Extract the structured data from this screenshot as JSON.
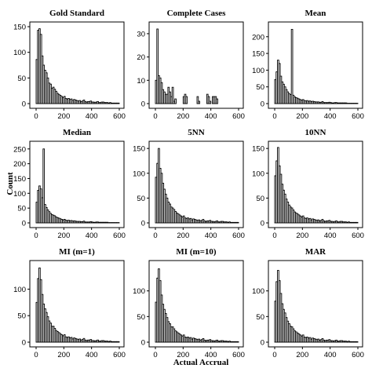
{
  "figure": {
    "xlabel": "Actual Accrual",
    "ylabel": "Count"
  },
  "chart_data": [
    {
      "type": "bar",
      "title": "Gold Standard",
      "xlim": [
        0,
        600
      ],
      "xticks": [
        0,
        200,
        400,
        600
      ],
      "ylim": [
        0,
        150
      ],
      "yticks": [
        0,
        50,
        100,
        150
      ],
      "bin_width": 10,
      "bin_starts": [
        0,
        10,
        20,
        30,
        40,
        50,
        60,
        70,
        80,
        90,
        100,
        110,
        120,
        130,
        140,
        150,
        160,
        170,
        180,
        190,
        200,
        210,
        220,
        230,
        240,
        250,
        260,
        270,
        280,
        290,
        300,
        310,
        320,
        330,
        340,
        350,
        360,
        370,
        380,
        390,
        400,
        410,
        420,
        430,
        440,
        450,
        460,
        470,
        480,
        490,
        500,
        510,
        520,
        530,
        540,
        550,
        560,
        570,
        580,
        590
      ],
      "values": [
        86,
        143,
        146,
        135,
        93,
        75,
        65,
        60,
        50,
        40,
        38,
        30,
        32,
        28,
        24,
        20,
        18,
        16,
        14,
        12,
        14,
        10,
        9,
        10,
        8,
        9,
        6,
        8,
        7,
        6,
        5,
        6,
        4,
        5,
        7,
        4,
        3,
        4,
        4,
        5,
        3,
        3,
        2,
        3,
        4,
        2,
        2,
        3,
        3,
        2,
        2,
        2,
        1,
        2,
        1,
        1,
        1,
        1,
        1,
        1
      ]
    },
    {
      "type": "bar",
      "title": "Complete Cases",
      "xlim": [
        0,
        600
      ],
      "xticks": [
        0,
        200,
        400,
        600
      ],
      "ylim": [
        0,
        33
      ],
      "yticks": [
        0,
        10,
        20,
        30
      ],
      "bin_width": 10,
      "bin_starts": [
        0,
        10,
        20,
        30,
        40,
        50,
        60,
        70,
        80,
        90,
        100,
        110,
        120,
        130,
        140,
        150,
        160,
        170,
        180,
        190,
        200,
        210,
        220,
        230,
        240,
        250,
        260,
        270,
        280,
        290,
        300,
        310,
        320,
        330,
        340,
        350,
        360,
        370,
        380,
        390,
        400,
        410,
        420,
        430,
        440,
        450,
        460,
        470,
        480,
        490,
        500,
        510,
        520,
        530,
        540,
        550,
        560,
        570,
        580,
        590
      ],
      "values": [
        10,
        32,
        12,
        11,
        9,
        6,
        5,
        4,
        4,
        7,
        5,
        3,
        7,
        1,
        2,
        0,
        0,
        0,
        0,
        0,
        3,
        4,
        3,
        0,
        0,
        0,
        0,
        0,
        0,
        0,
        3,
        1,
        0,
        0,
        0,
        0,
        0,
        4,
        3,
        1,
        0,
        3,
        3,
        3,
        2,
        0,
        0,
        0,
        0,
        0,
        0,
        0,
        0,
        0,
        0,
        0,
        0,
        0,
        0,
        0
      ]
    },
    {
      "type": "bar",
      "title": "Mean",
      "xlim": [
        0,
        600
      ],
      "xticks": [
        0,
        200,
        400,
        600
      ],
      "ylim": [
        0,
        230
      ],
      "yticks": [
        0,
        50,
        100,
        150,
        200
      ],
      "bin_width": 10,
      "bin_starts": [
        0,
        10,
        20,
        30,
        40,
        50,
        60,
        70,
        80,
        90,
        100,
        110,
        120,
        130,
        140,
        150,
        160,
        170,
        180,
        190,
        200,
        210,
        220,
        230,
        240,
        250,
        260,
        270,
        280,
        290,
        300,
        310,
        320,
        330,
        340,
        350,
        360,
        370,
        380,
        390,
        400,
        410,
        420,
        430,
        440,
        450,
        460,
        470,
        480,
        490,
        500,
        510,
        520,
        530,
        540,
        550,
        560,
        570,
        580,
        590
      ],
      "values": [
        72,
        95,
        130,
        120,
        82,
        65,
        58,
        50,
        42,
        35,
        30,
        27,
        222,
        25,
        20,
        18,
        16,
        14,
        12,
        10,
        12,
        9,
        8,
        9,
        7,
        8,
        6,
        7,
        6,
        5,
        5,
        5,
        4,
        4,
        6,
        3,
        3,
        3,
        3,
        4,
        3,
        2,
        2,
        3,
        3,
        2,
        2,
        2,
        2,
        2,
        2,
        2,
        1,
        1,
        1,
        1,
        1,
        1,
        1,
        1
      ]
    },
    {
      "type": "bar",
      "title": "Median",
      "xlim": [
        0,
        600
      ],
      "xticks": [
        0,
        200,
        400,
        600
      ],
      "ylim": [
        0,
        260
      ],
      "yticks": [
        0,
        50,
        100,
        150,
        200,
        250
      ],
      "bin_width": 10,
      "bin_starts": [
        0,
        10,
        20,
        30,
        40,
        50,
        60,
        70,
        80,
        90,
        100,
        110,
        120,
        130,
        140,
        150,
        160,
        170,
        180,
        190,
        200,
        210,
        220,
        230,
        240,
        250,
        260,
        270,
        280,
        290,
        300,
        310,
        320,
        330,
        340,
        350,
        360,
        370,
        380,
        390,
        400,
        410,
        420,
        430,
        440,
        450,
        460,
        470,
        480,
        490,
        500,
        510,
        520,
        530,
        540,
        550,
        560,
        570,
        580,
        590
      ],
      "values": [
        70,
        110,
        125,
        115,
        85,
        250,
        62,
        52,
        44,
        38,
        32,
        28,
        26,
        24,
        20,
        18,
        16,
        14,
        12,
        10,
        12,
        9,
        8,
        9,
        7,
        8,
        6,
        7,
        6,
        5,
        5,
        5,
        4,
        4,
        6,
        3,
        3,
        3,
        3,
        4,
        3,
        2,
        2,
        3,
        3,
        2,
        2,
        2,
        2,
        2,
        2,
        2,
        1,
        1,
        1,
        1,
        1,
        1,
        1,
        1
      ]
    },
    {
      "type": "bar",
      "title": "5NN",
      "xlim": [
        0,
        600
      ],
      "xticks": [
        0,
        200,
        400,
        600
      ],
      "ylim": [
        0,
        155
      ],
      "yticks": [
        0,
        50,
        100,
        150
      ],
      "bin_width": 10,
      "bin_starts": [
        0,
        10,
        20,
        30,
        40,
        50,
        60,
        70,
        80,
        90,
        100,
        110,
        120,
        130,
        140,
        150,
        160,
        170,
        180,
        190,
        200,
        210,
        220,
        230,
        240,
        250,
        260,
        270,
        280,
        290,
        300,
        310,
        320,
        330,
        340,
        350,
        360,
        370,
        380,
        390,
        400,
        410,
        420,
        430,
        440,
        450,
        460,
        470,
        480,
        490,
        500,
        510,
        520,
        530,
        540,
        550,
        560,
        570,
        580,
        590
      ],
      "values": [
        92,
        120,
        150,
        110,
        100,
        80,
        68,
        58,
        50,
        42,
        38,
        32,
        30,
        27,
        23,
        20,
        18,
        16,
        14,
        12,
        14,
        10,
        9,
        10,
        8,
        9,
        6,
        8,
        7,
        6,
        5,
        6,
        4,
        5,
        7,
        4,
        3,
        4,
        4,
        5,
        3,
        3,
        2,
        3,
        4,
        2,
        2,
        3,
        3,
        2,
        2,
        2,
        1,
        2,
        1,
        1,
        1,
        1,
        1,
        1
      ]
    },
    {
      "type": "bar",
      "title": "10NN",
      "xlim": [
        0,
        600
      ],
      "xticks": [
        0,
        200,
        400,
        600
      ],
      "ylim": [
        0,
        155
      ],
      "yticks": [
        0,
        50,
        100,
        150
      ],
      "bin_width": 10,
      "bin_starts": [
        0,
        10,
        20,
        30,
        40,
        50,
        60,
        70,
        80,
        90,
        100,
        110,
        120,
        130,
        140,
        150,
        160,
        170,
        180,
        190,
        200,
        210,
        220,
        230,
        240,
        250,
        260,
        270,
        280,
        290,
        300,
        310,
        320,
        330,
        340,
        350,
        360,
        370,
        380,
        390,
        400,
        410,
        420,
        430,
        440,
        450,
        460,
        470,
        480,
        490,
        500,
        510,
        520,
        530,
        540,
        550,
        560,
        570,
        580,
        590
      ],
      "values": [
        95,
        125,
        152,
        115,
        98,
        78,
        66,
        58,
        48,
        42,
        36,
        32,
        30,
        26,
        22,
        20,
        18,
        16,
        14,
        12,
        14,
        10,
        9,
        10,
        8,
        9,
        6,
        8,
        7,
        6,
        5,
        6,
        4,
        5,
        7,
        4,
        3,
        4,
        4,
        5,
        3,
        3,
        2,
        3,
        4,
        2,
        2,
        3,
        3,
        2,
        2,
        2,
        1,
        2,
        1,
        1,
        1,
        1,
        1,
        1
      ]
    },
    {
      "type": "bar",
      "title": "MI (m=1)",
      "xlim": [
        0,
        600
      ],
      "xticks": [
        0,
        200,
        400,
        600
      ],
      "ylim": [
        0,
        145
      ],
      "yticks": [
        0,
        50,
        100
      ],
      "bin_width": 10,
      "bin_starts": [
        0,
        10,
        20,
        30,
        40,
        50,
        60,
        70,
        80,
        90,
        100,
        110,
        120,
        130,
        140,
        150,
        160,
        170,
        180,
        190,
        200,
        210,
        220,
        230,
        240,
        250,
        260,
        270,
        280,
        290,
        300,
        310,
        320,
        330,
        340,
        350,
        360,
        370,
        380,
        390,
        400,
        410,
        420,
        430,
        440,
        450,
        460,
        470,
        480,
        490,
        500,
        510,
        520,
        530,
        540,
        550,
        560,
        570,
        580,
        590
      ],
      "values": [
        75,
        120,
        140,
        118,
        90,
        72,
        63,
        56,
        48,
        40,
        36,
        30,
        30,
        26,
        22,
        20,
        18,
        16,
        14,
        12,
        14,
        10,
        9,
        10,
        8,
        9,
        6,
        8,
        7,
        6,
        5,
        6,
        4,
        5,
        7,
        4,
        3,
        4,
        4,
        5,
        3,
        3,
        2,
        3,
        4,
        2,
        2,
        3,
        3,
        2,
        2,
        2,
        1,
        2,
        1,
        1,
        1,
        1,
        1,
        1
      ]
    },
    {
      "type": "bar",
      "title": "MI (m=10)",
      "xlim": [
        0,
        600
      ],
      "xticks": [
        0,
        200,
        400,
        600
      ],
      "ylim": [
        0,
        150
      ],
      "yticks": [
        0,
        50,
        100
      ],
      "bin_width": 10,
      "bin_starts": [
        0,
        10,
        20,
        30,
        40,
        50,
        60,
        70,
        80,
        90,
        100,
        110,
        120,
        130,
        140,
        150,
        160,
        170,
        180,
        190,
        200,
        210,
        220,
        230,
        240,
        250,
        260,
        270,
        280,
        290,
        300,
        310,
        320,
        330,
        340,
        350,
        360,
        370,
        380,
        390,
        400,
        410,
        420,
        430,
        440,
        450,
        460,
        470,
        480,
        490,
        500,
        510,
        520,
        530,
        540,
        550,
        560,
        570,
        580,
        590
      ],
      "values": [
        78,
        125,
        143,
        120,
        92,
        74,
        64,
        56,
        48,
        40,
        36,
        30,
        30,
        26,
        22,
        20,
        18,
        16,
        14,
        12,
        14,
        10,
        9,
        10,
        8,
        9,
        6,
        8,
        7,
        6,
        5,
        6,
        4,
        5,
        7,
        4,
        3,
        4,
        4,
        5,
        3,
        3,
        2,
        3,
        4,
        2,
        2,
        3,
        3,
        2,
        2,
        2,
        1,
        2,
        1,
        1,
        1,
        1,
        1,
        1
      ]
    },
    {
      "type": "bar",
      "title": "MAR",
      "xlim": [
        0,
        600
      ],
      "xticks": [
        0,
        200,
        400,
        600
      ],
      "ylim": [
        0,
        150
      ],
      "yticks": [
        0,
        50,
        100
      ],
      "bin_width": 10,
      "bin_starts": [
        0,
        10,
        20,
        30,
        40,
        50,
        60,
        70,
        80,
        90,
        100,
        110,
        120,
        130,
        140,
        150,
        160,
        170,
        180,
        190,
        200,
        210,
        220,
        230,
        240,
        250,
        260,
        270,
        280,
        290,
        300,
        310,
        320,
        330,
        340,
        350,
        360,
        370,
        380,
        390,
        400,
        410,
        420,
        430,
        440,
        450,
        460,
        470,
        480,
        490,
        500,
        510,
        520,
        530,
        540,
        550,
        560,
        570,
        580,
        590
      ],
      "values": [
        80,
        118,
        140,
        120,
        95,
        75,
        64,
        57,
        48,
        41,
        36,
        31,
        30,
        26,
        22,
        20,
        18,
        16,
        14,
        12,
        14,
        10,
        9,
        10,
        8,
        9,
        6,
        8,
        7,
        6,
        5,
        6,
        4,
        5,
        7,
        4,
        3,
        4,
        4,
        5,
        3,
        3,
        2,
        3,
        4,
        2,
        2,
        3,
        3,
        2,
        2,
        2,
        1,
        2,
        1,
        1,
        1,
        1,
        1,
        1
      ]
    }
  ]
}
